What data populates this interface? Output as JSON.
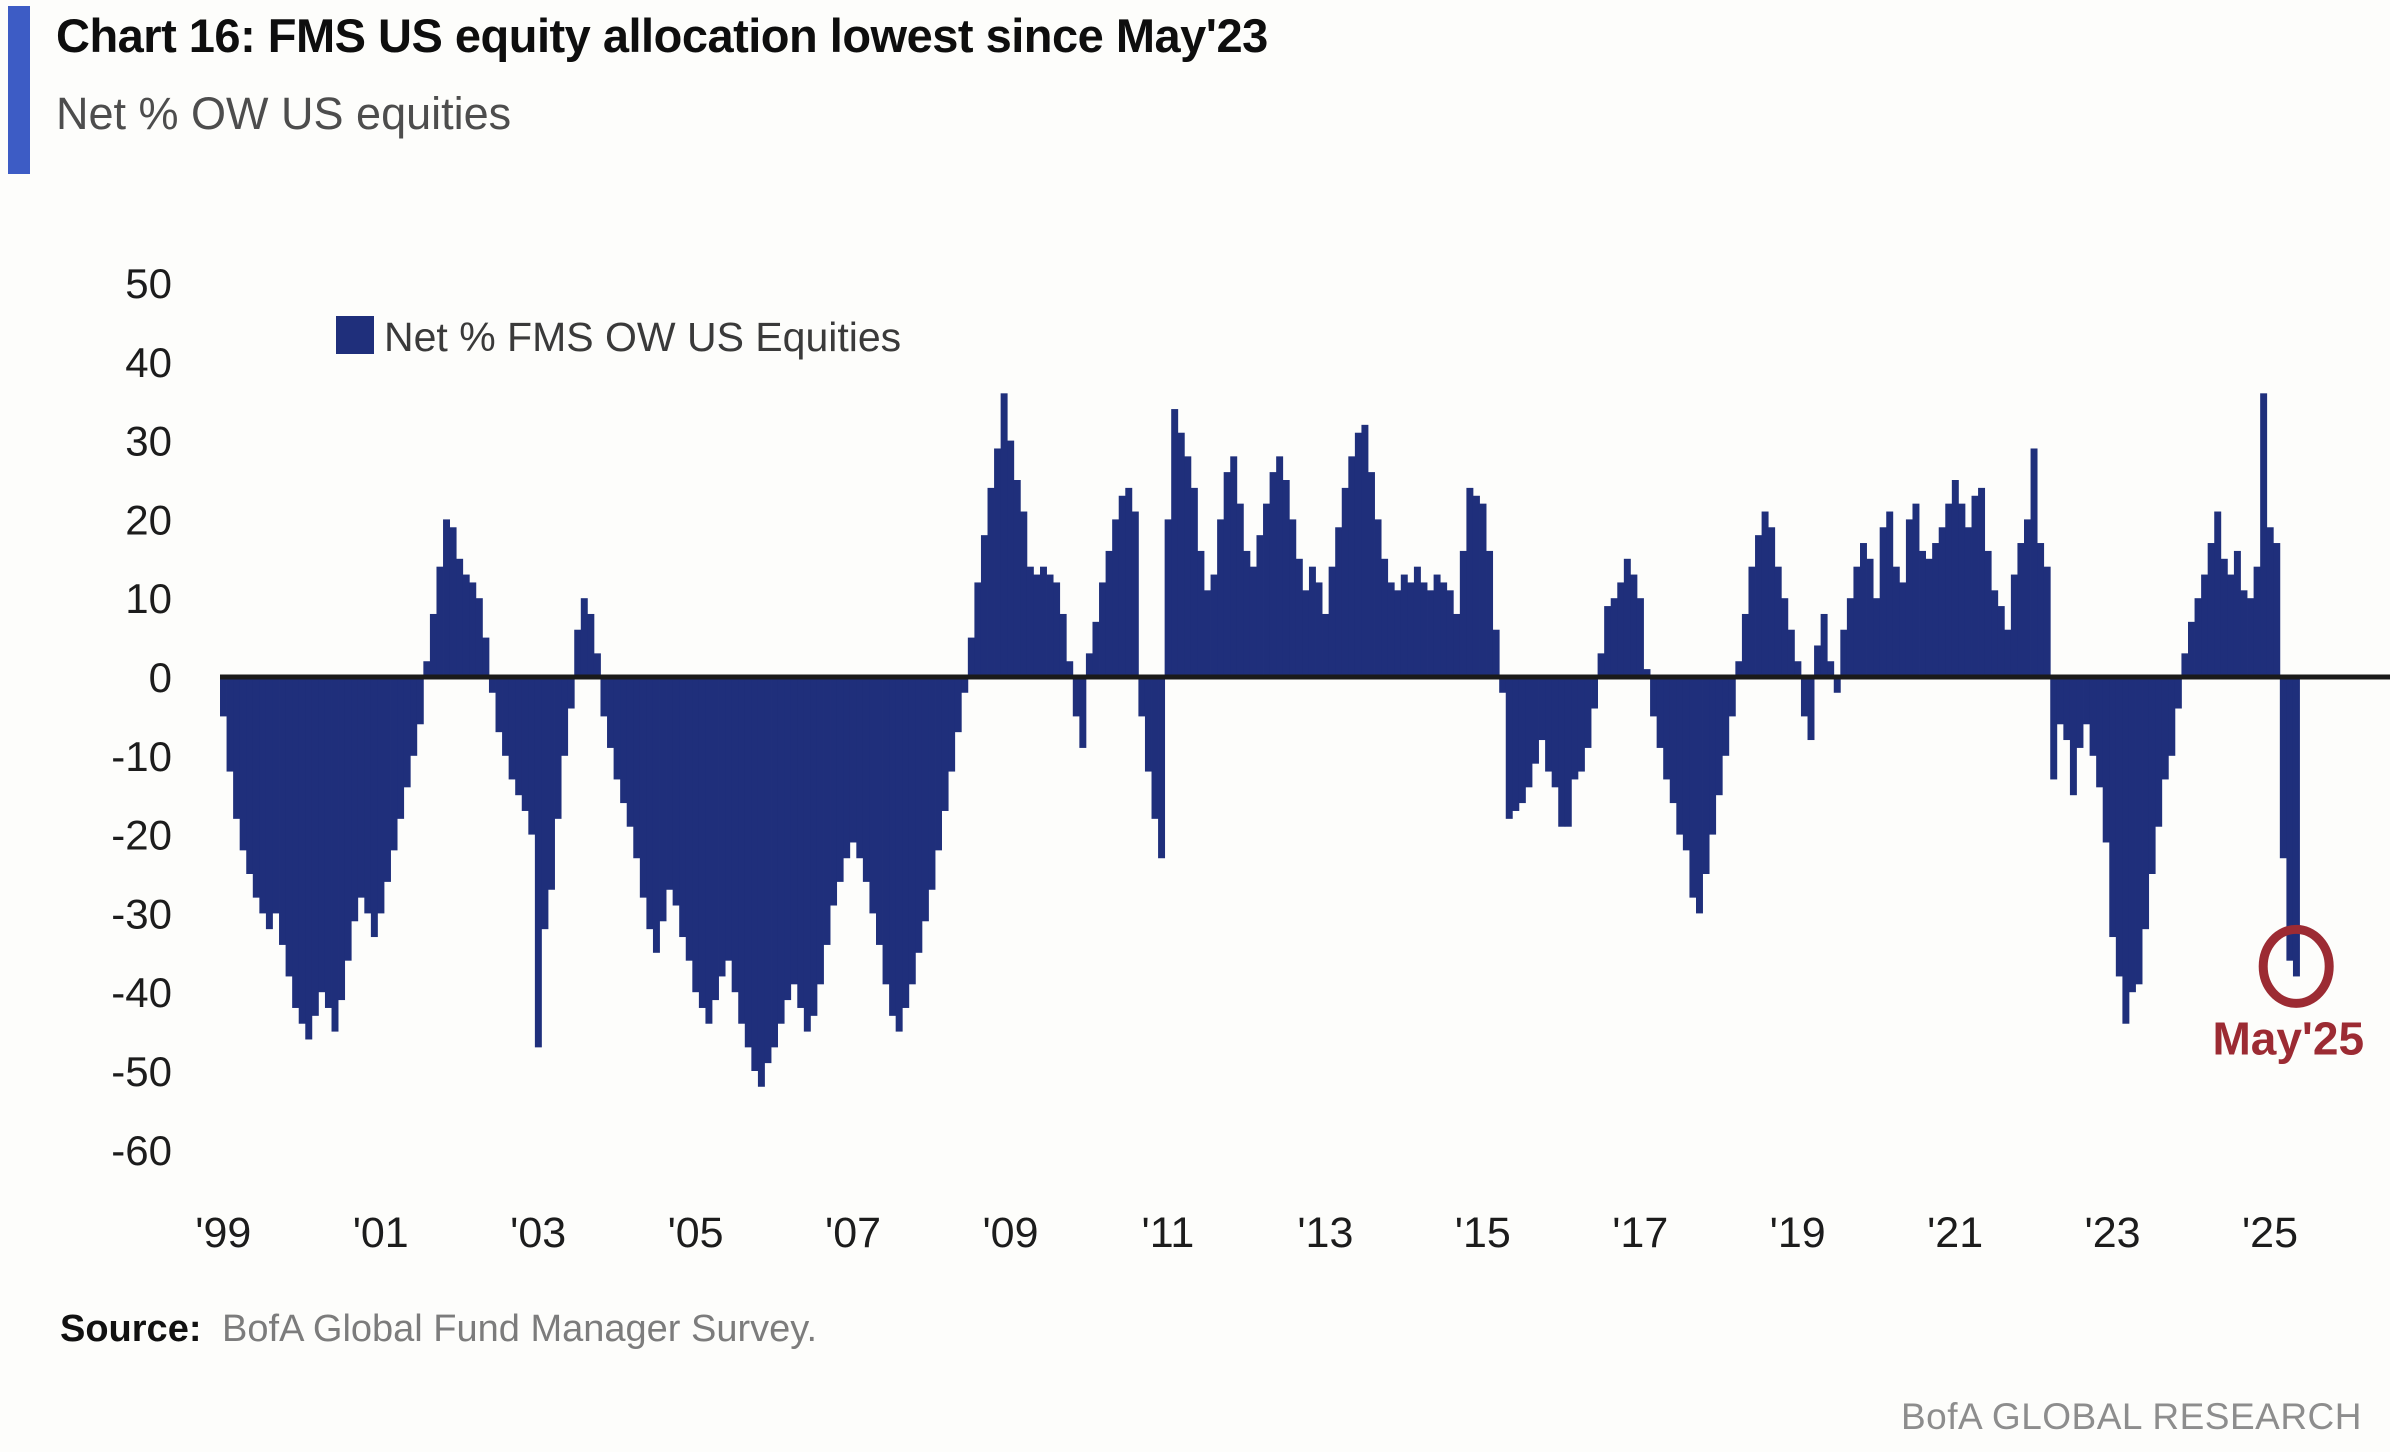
{
  "header": {
    "title": "Chart 16: FMS US equity allocation lowest since May'23",
    "subtitle": "Net % OW US equities",
    "accent_color": "#3D5CC5"
  },
  "legend": {
    "label": "Net % FMS OW US Equities",
    "swatch_color": "#1F2F7B"
  },
  "chart_data": {
    "type": "bar",
    "title": "Net % FMS OW US Equities",
    "x_unit": "month",
    "x_range": [
      "1999-01",
      "2025-05"
    ],
    "ylim": [
      -60,
      50
    ],
    "y_ticks": [
      50,
      40,
      30,
      20,
      10,
      0,
      -10,
      -20,
      -30,
      -40,
      -50,
      -60
    ],
    "x_tick_labels": [
      "'99",
      "'01",
      "'03",
      "'05",
      "'07",
      "'09",
      "'11",
      "'13",
      "'15",
      "'17",
      "'19",
      "'21",
      "'23",
      "'25"
    ],
    "bar_color": "#1F2F7B",
    "axis_color": "#1a1a1a",
    "grid": false,
    "legend_position": "top-left",
    "series": [
      {
        "name": "Net % FMS OW US Equities",
        "monthly_values": {
          "1999": [
            -5,
            -12,
            -18,
            -22,
            -25,
            -28,
            -30,
            -32,
            -30,
            -34,
            -38,
            -42
          ],
          "2000": [
            -44,
            -46,
            -43,
            -40,
            -42,
            -45,
            -41,
            -36,
            -31,
            -28,
            -30,
            -33
          ],
          "2001": [
            -30,
            -26,
            -22,
            -18,
            -14,
            -10,
            -6,
            2,
            8,
            14,
            20,
            19
          ],
          "2002": [
            15,
            13,
            12,
            10,
            5,
            -2,
            -7,
            -10,
            -13,
            -15,
            -17,
            -20
          ],
          "2003": [
            -47,
            -32,
            -27,
            -18,
            -10,
            -4,
            6,
            10,
            8,
            3,
            -5,
            -9
          ],
          "2004": [
            -13,
            -16,
            -19,
            -23,
            -28,
            -32,
            -35,
            -31,
            -27,
            -29,
            -33,
            -36
          ],
          "2005": [
            -40,
            -42,
            -44,
            -41,
            -38,
            -36,
            -40,
            -44,
            -47,
            -50,
            -52,
            -49
          ],
          "2006": [
            -47,
            -44,
            -41,
            -39,
            -42,
            -45,
            -43,
            -39,
            -34,
            -29,
            -26,
            -23
          ],
          "2007": [
            -21,
            -23,
            -26,
            -30,
            -34,
            -39,
            -43,
            -45,
            -42,
            -39,
            -35,
            -31
          ],
          "2008": [
            -27,
            -22,
            -17,
            -12,
            -7,
            -2,
            5,
            12,
            18,
            24,
            29,
            36
          ],
          "2009": [
            30,
            25,
            21,
            14,
            13,
            14,
            13,
            12,
            8,
            2,
            -5,
            -9
          ],
          "2010": [
            3,
            7,
            12,
            16,
            20,
            23,
            24,
            21,
            -5,
            -12,
            -18,
            -23
          ],
          "2011": [
            20,
            34,
            31,
            28,
            24,
            16,
            11,
            13,
            20,
            26,
            28,
            22
          ],
          "2012": [
            16,
            14,
            18,
            22,
            26,
            28,
            25,
            20,
            15,
            11,
            14,
            12
          ],
          "2013": [
            8,
            14,
            19,
            24,
            28,
            31,
            32,
            26,
            20,
            15,
            12,
            11
          ],
          "2014": [
            13,
            12,
            14,
            12,
            11,
            13,
            12,
            11,
            8,
            16,
            24,
            23
          ],
          "2015": [
            22,
            16,
            6,
            -2,
            -18,
            -17,
            -16,
            -14,
            -11,
            -8,
            -12,
            -14
          ],
          "2016": [
            -19,
            -19,
            -13,
            -12,
            -9,
            -4,
            3,
            9,
            10,
            12,
            15,
            13
          ],
          "2017": [
            10,
            1,
            -5,
            -9,
            -13,
            -16,
            -20,
            -22,
            -28,
            -30,
            -25,
            -20
          ],
          "2018": [
            -15,
            -10,
            -5,
            2,
            8,
            14,
            18,
            21,
            19,
            14,
            10,
            6
          ],
          "2019": [
            2,
            -5,
            -8,
            4,
            8,
            2,
            -2,
            6,
            10,
            14,
            17,
            15
          ],
          "2020": [
            10,
            19,
            21,
            14,
            12,
            20,
            22,
            16,
            15,
            17,
            19,
            22
          ],
          "2021": [
            25,
            22,
            19,
            23,
            24,
            16,
            11,
            9,
            6,
            13,
            17,
            20
          ],
          "2022": [
            29,
            17,
            14,
            -13,
            -6,
            -8,
            -15,
            -9,
            -6,
            -10,
            -14,
            -21
          ],
          "2023": [
            -33,
            -38,
            -44,
            -40,
            -39,
            -32,
            -25,
            -19,
            -13,
            -10,
            -4,
            3
          ],
          "2024": [
            7,
            10,
            13,
            17,
            21,
            15,
            13,
            16,
            11,
            10,
            14,
            36
          ],
          "2025": [
            19,
            17,
            -23,
            -36,
            -38
          ]
        }
      }
    ],
    "annotation": {
      "label": "May'25",
      "month": "2025-05",
      "value": -38,
      "color": "#9C2B33"
    }
  },
  "footer": {
    "source_label": "Source:",
    "source_text": "BofA Global Fund Manager Survey.",
    "brand": "BofA GLOBAL RESEARCH"
  }
}
